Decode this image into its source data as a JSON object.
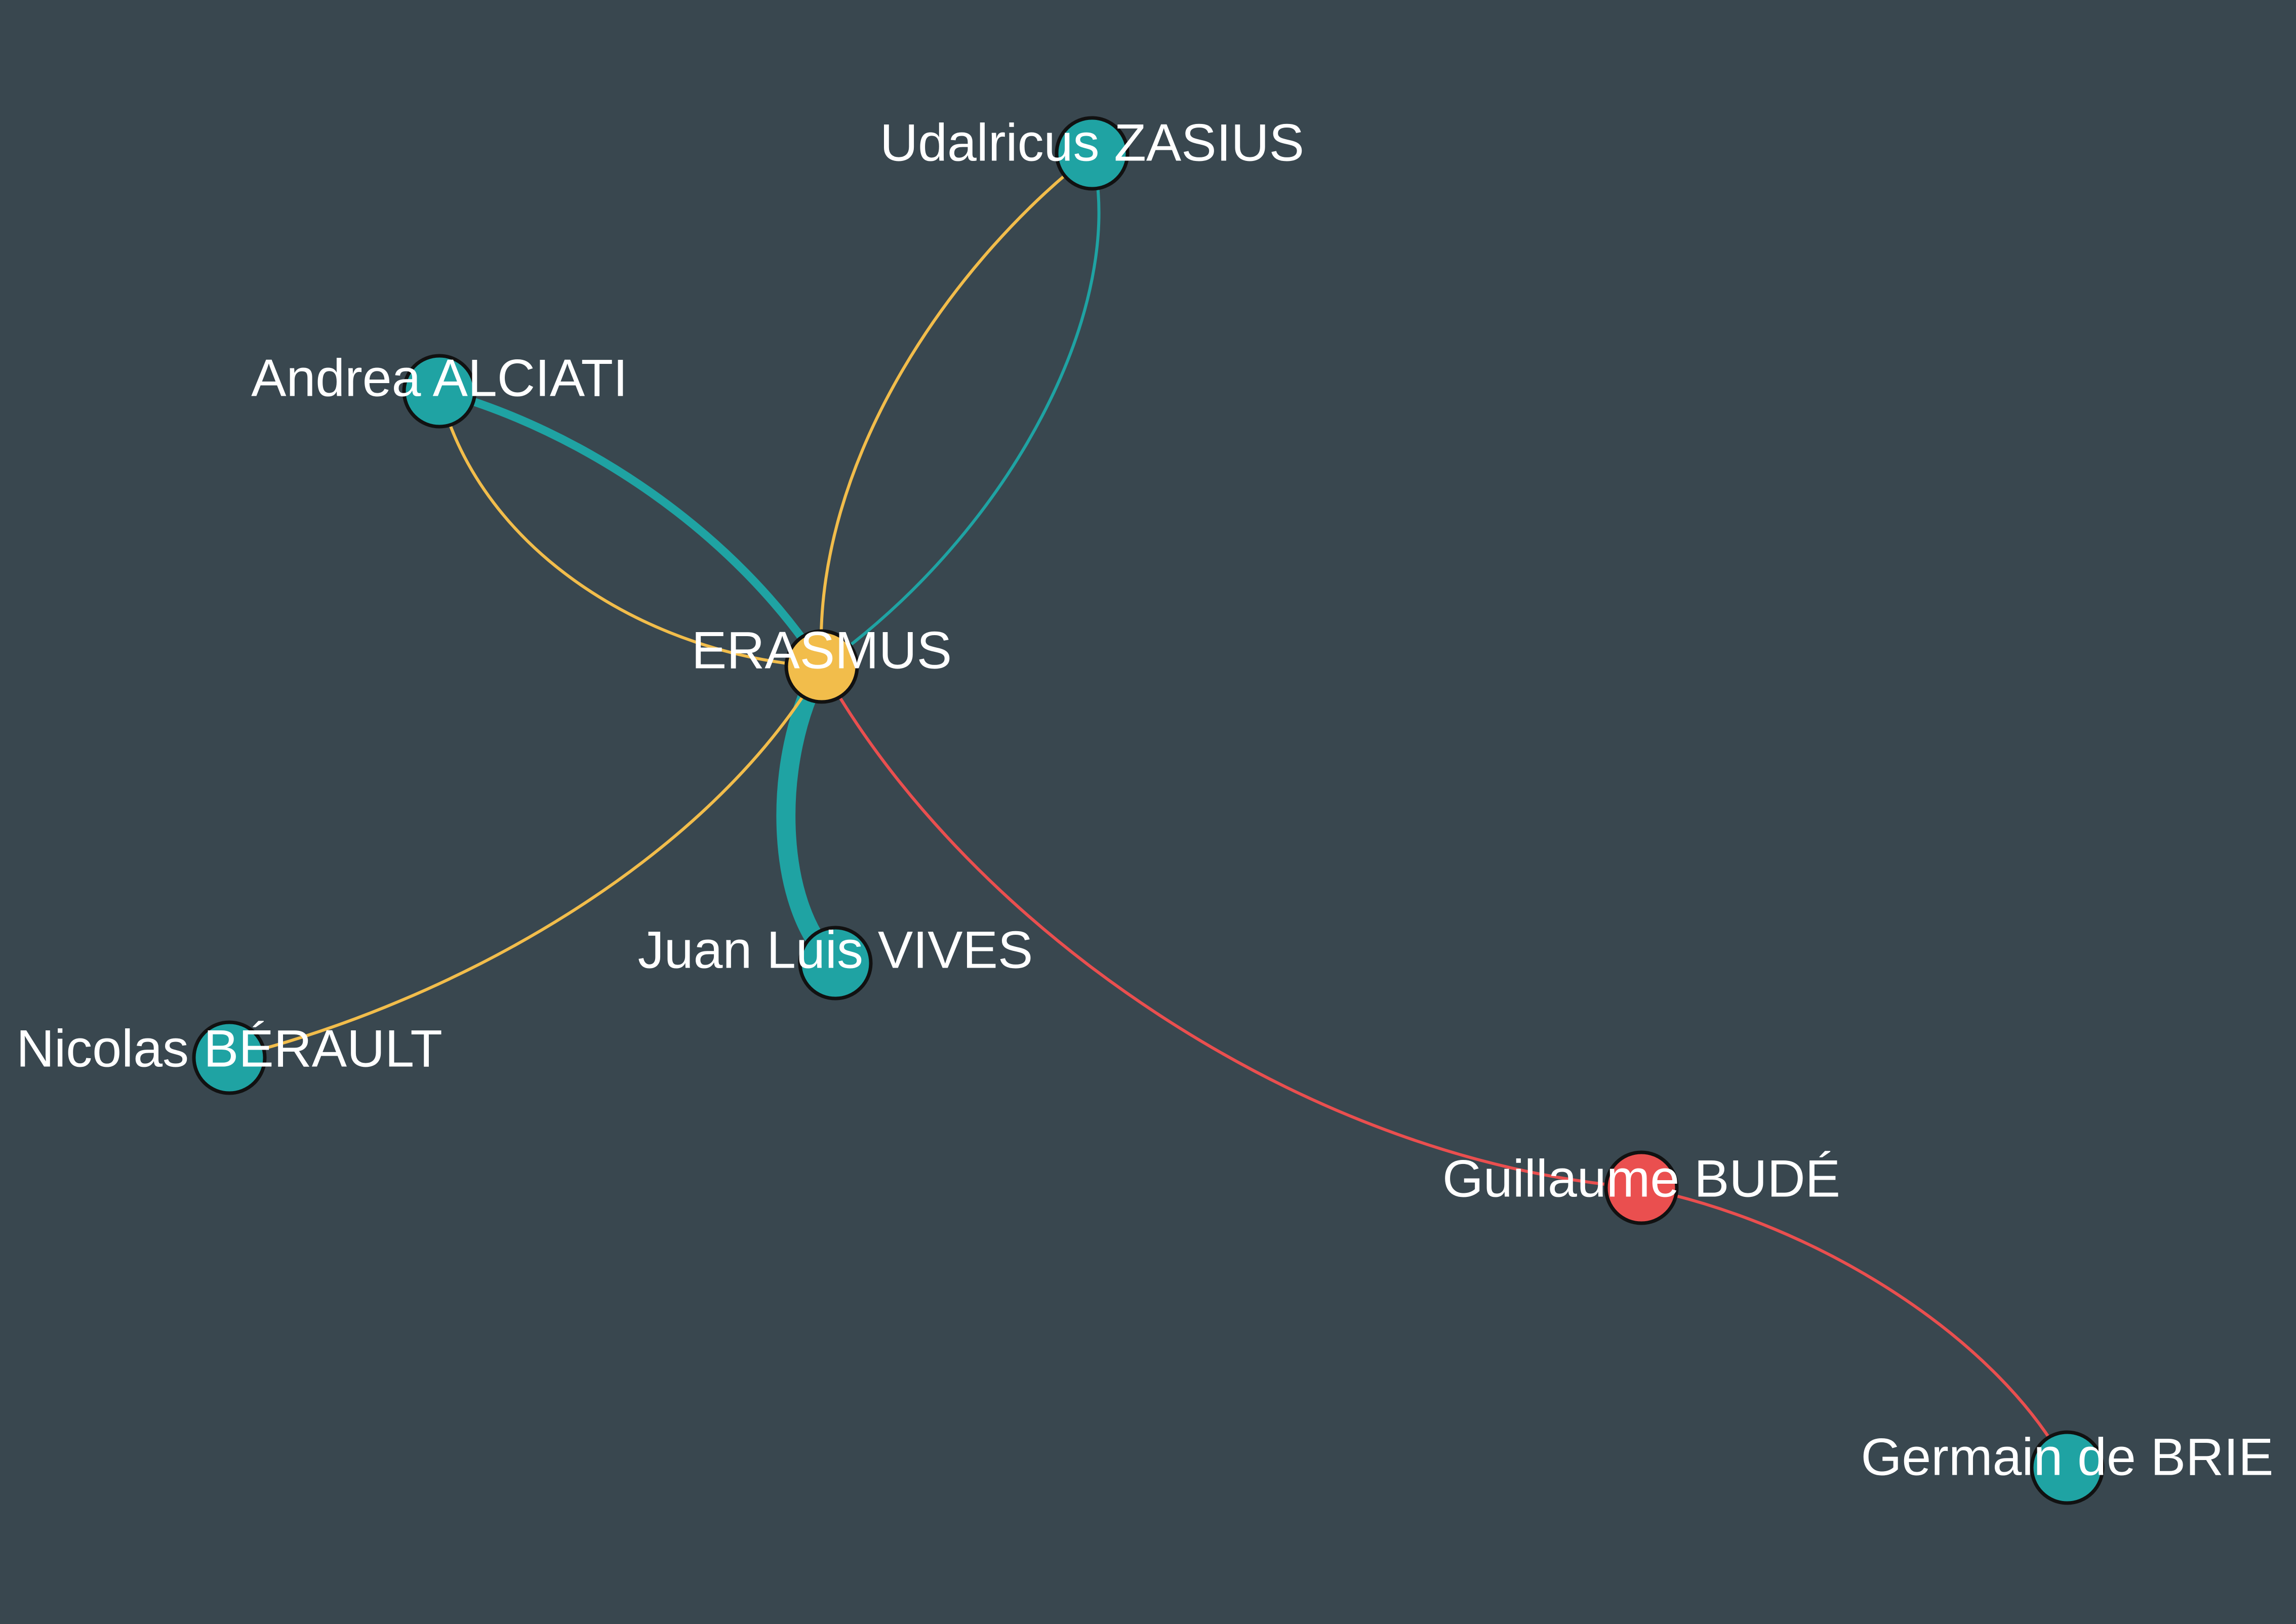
{
  "colors": {
    "background": "#39474f",
    "teal": "#1fa3a3",
    "yellow": "#f2bd4b",
    "red": "#ea4f4f",
    "label": "#ffffff"
  },
  "nodes": [
    {
      "id": "erasmus",
      "label": "ERASMUS",
      "color": "#f2bd4b"
    },
    {
      "id": "zasius",
      "label": "Udalricus ZASIUS",
      "color": "#1fa3a3"
    },
    {
      "id": "alciati",
      "label": "Andrea ALCIATI",
      "color": "#1fa3a3"
    },
    {
      "id": "vives",
      "label": "Juan Luis VIVES",
      "color": "#1fa3a3"
    },
    {
      "id": "berault",
      "label": "Nicolas BÉRAULT",
      "color": "#1fa3a3"
    },
    {
      "id": "bude",
      "label": "Guillaume BUDÉ",
      "color": "#ea4f4f"
    },
    {
      "id": "brie",
      "label": "Germain de BRIE",
      "color": "#1fa3a3"
    }
  ],
  "edges": [
    {
      "source": "erasmus",
      "target": "zasius",
      "color": "#f2bd4b",
      "weight": 1
    },
    {
      "source": "zasius",
      "target": "erasmus",
      "color": "#1fa3a3",
      "weight": 1
    },
    {
      "source": "alciati",
      "target": "erasmus",
      "color": "#1fa3a3",
      "weight": 3
    },
    {
      "source": "erasmus",
      "target": "alciati",
      "color": "#f2bd4b",
      "weight": 1
    },
    {
      "source": "erasmus",
      "target": "vives",
      "color": "#1fa3a3",
      "weight": 7
    },
    {
      "source": "erasmus",
      "target": "berault",
      "color": "#f2bd4b",
      "weight": 1
    },
    {
      "source": "erasmus",
      "target": "bude",
      "color": "#ea4f4f",
      "weight": 1
    },
    {
      "source": "bude",
      "target": "brie",
      "color": "#ea4f4f",
      "weight": 1
    }
  ]
}
